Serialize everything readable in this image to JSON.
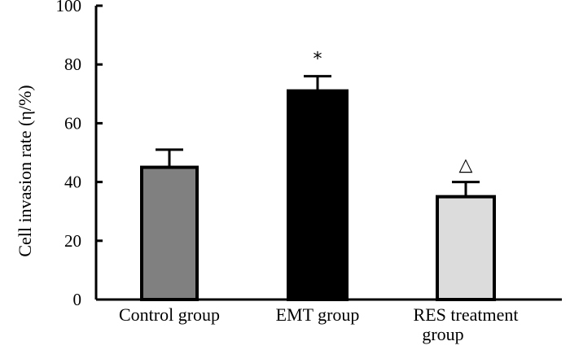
{
  "chart_data": {
    "type": "bar",
    "title": "",
    "xlabel": "",
    "ylabel": "Cell invasion rate (η/%)",
    "ylim": [
      0,
      100
    ],
    "yticks": [
      0,
      20,
      40,
      60,
      80,
      100
    ],
    "categories": [
      "Control group",
      "EMT group",
      "RES treatment group"
    ],
    "category_lines": [
      [
        "Control group"
      ],
      [
        "EMT group"
      ],
      [
        "RES treatment",
        "group"
      ]
    ],
    "values": [
      45,
      71,
      35
    ],
    "errors": [
      6,
      5,
      5
    ],
    "colors": [
      "#808080",
      "#000000",
      "#dcdcdc"
    ],
    "annotations": [
      "",
      "*",
      "△"
    ]
  }
}
